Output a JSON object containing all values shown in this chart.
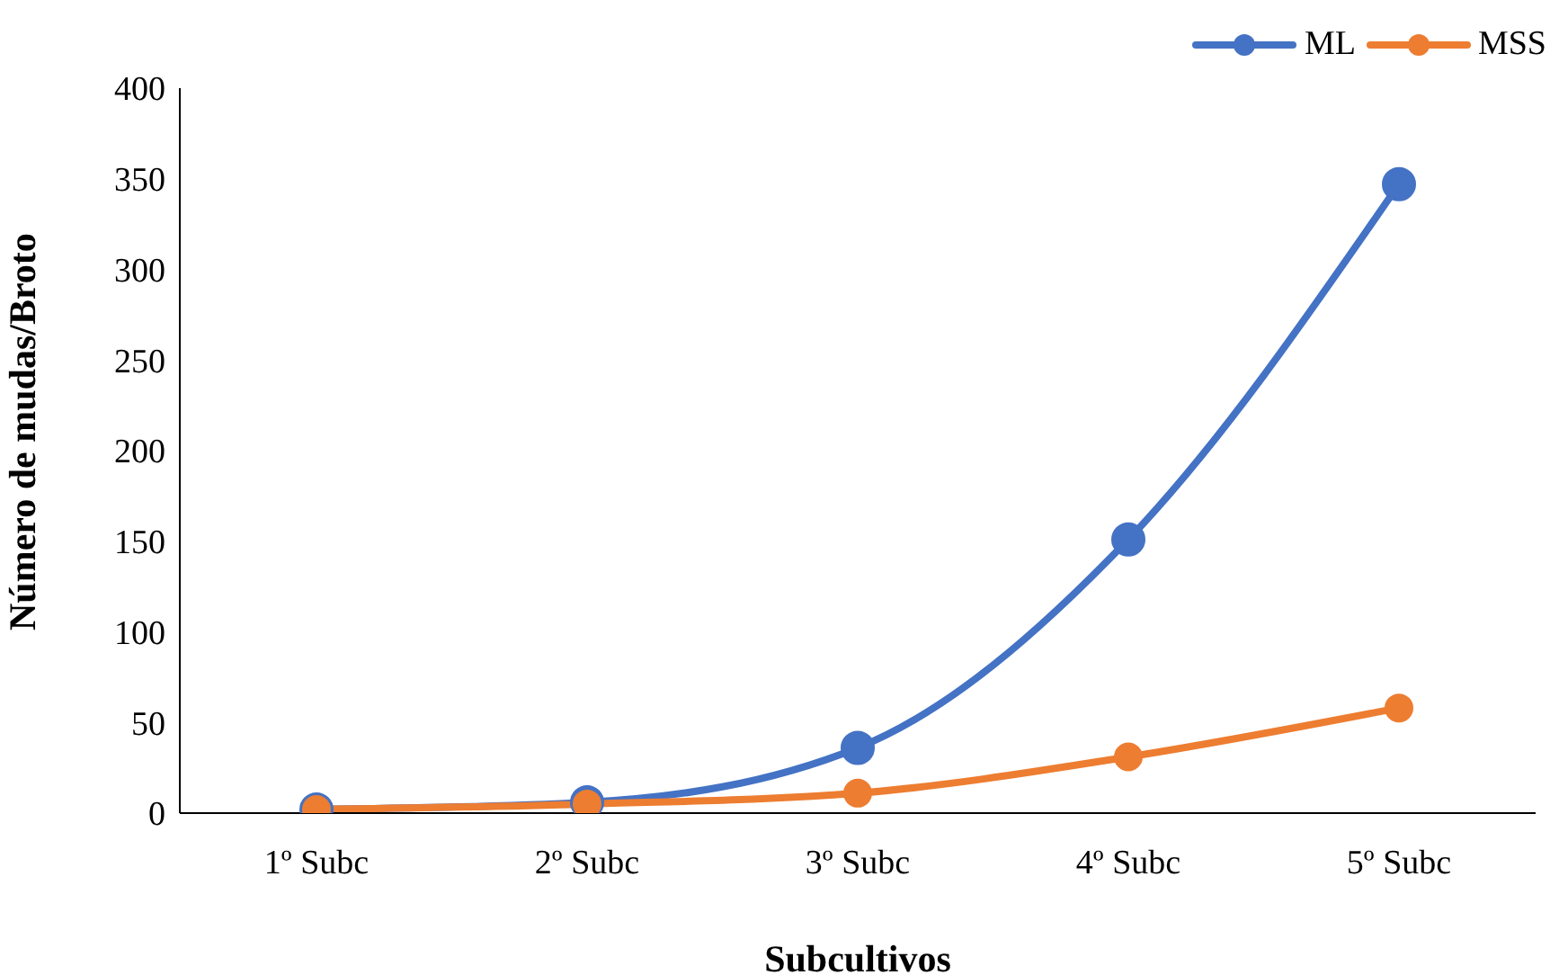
{
  "chart_data": {
    "type": "line",
    "xlabel": "Subcultivos",
    "ylabel": "Número de mudas/Broto",
    "categories": [
      "1º Subc",
      "2º Subc",
      "3º Subc",
      "4º Subc",
      "5º Subc"
    ],
    "series": [
      {
        "name": "ML",
        "color": "#4472c4",
        "values": [
          2,
          6,
          36,
          151,
          347
        ]
      },
      {
        "name": "MSS",
        "color": "#ed7d31",
        "values": [
          2,
          5,
          11,
          31,
          58
        ]
      }
    ],
    "ylim": [
      0,
      400
    ],
    "yticks": [
      0,
      50,
      100,
      150,
      200,
      250,
      300,
      350,
      400
    ],
    "grid": false,
    "legend": "top right",
    "marker": "circle",
    "line_style": "solid"
  }
}
